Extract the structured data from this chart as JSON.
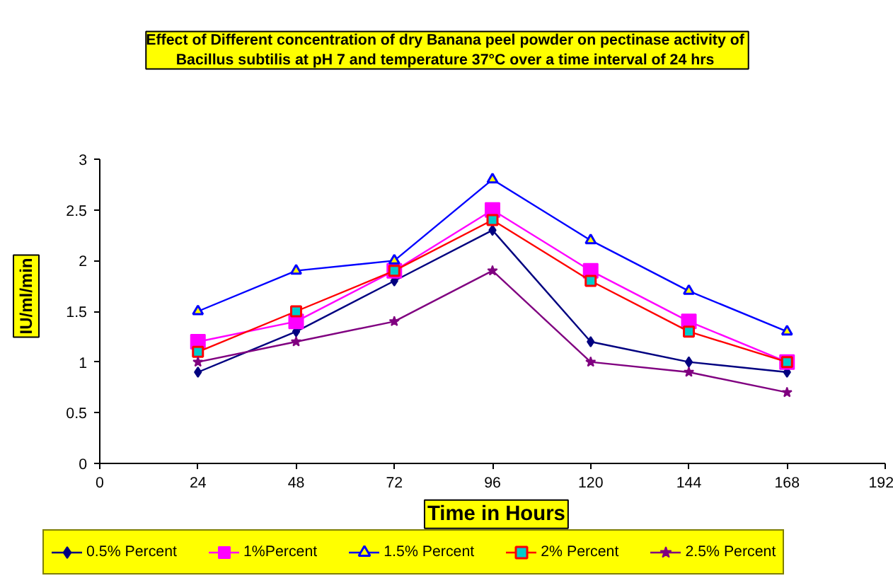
{
  "chart_data": {
    "type": "line",
    "title": "Effect of Different concentration of dry Banana peel  powder on pectinase activity of\nBacillus subtilis  at pH 7 and temperature 37°C over a time interval of 24 hrs",
    "xlabel": "Time in Hours",
    "ylabel": "IU/ml/min",
    "x": [
      24,
      48,
      72,
      96,
      120,
      144,
      168
    ],
    "series": [
      {
        "name": "0.5% Percent",
        "color": "#000080",
        "marker": "diamond",
        "values": [
          0.9,
          1.3,
          1.8,
          2.3,
          1.2,
          1.0,
          0.9
        ]
      },
      {
        "name": "1%Percent",
        "color": "#ff00ff",
        "marker": "square",
        "values": [
          1.2,
          1.4,
          1.9,
          2.5,
          1.9,
          1.4,
          1.0
        ]
      },
      {
        "name": "1.5% Percent",
        "color": "#0000ff",
        "marker": "triangle",
        "values": [
          1.5,
          1.9,
          2.0,
          2.8,
          2.2,
          1.7,
          1.3
        ]
      },
      {
        "name": "2% Percent",
        "color": "#ff0000",
        "marker": "square",
        "values": [
          1.1,
          1.5,
          1.9,
          2.4,
          1.8,
          1.3,
          1.0
        ]
      },
      {
        "name": "2.5% Percent",
        "color": "#800080",
        "marker": "star",
        "values": [
          1.0,
          1.2,
          1.4,
          1.9,
          1.0,
          0.9,
          0.7
        ]
      }
    ],
    "xlim": [
      0,
      192
    ],
    "xticks": [
      0,
      24,
      48,
      72,
      96,
      120,
      144,
      168,
      192
    ],
    "ylim": [
      0,
      3
    ],
    "yticks": [
      0,
      0.5,
      1,
      1.5,
      2,
      2.5,
      3
    ],
    "grid": false,
    "legend": "bottom",
    "line_style": "solid"
  }
}
